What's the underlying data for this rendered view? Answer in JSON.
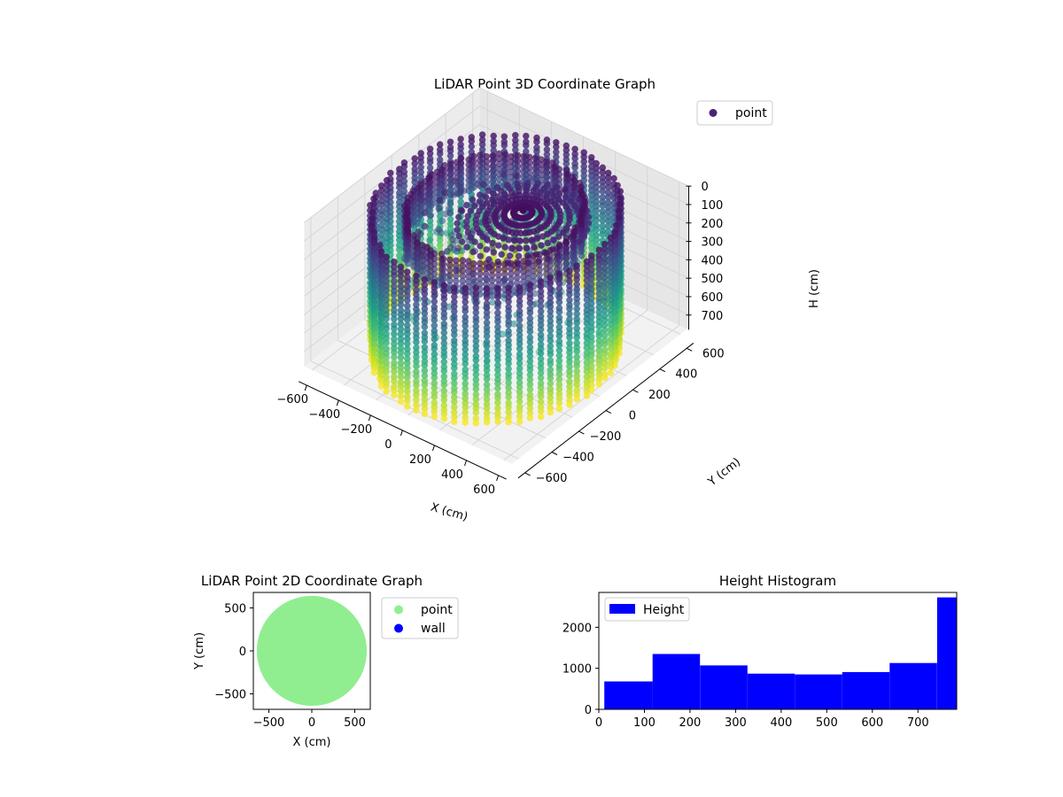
{
  "chart_data": [
    {
      "type": "scatter3d",
      "title": "LiDAR Point 3D Coordinate Graph",
      "xlabel": "X (cm)",
      "ylabel": "Y (cm)",
      "zlabel": "H (cm)",
      "xlim": [
        -650,
        650
      ],
      "ylim": [
        -650,
        650
      ],
      "zlim": [
        780,
        0
      ],
      "x_ticks": [
        -600,
        -400,
        -200,
        0,
        200,
        400,
        600
      ],
      "y_ticks": [
        -600,
        -400,
        -200,
        0,
        200,
        400,
        600
      ],
      "z_ticks": [
        0,
        100,
        200,
        300,
        400,
        500,
        600,
        700
      ],
      "legend": {
        "position": "top-right",
        "entries": [
          "point"
        ]
      },
      "series": [
        {
          "name": "point",
          "color_map": "viridis",
          "legend_color": "#482575",
          "description_values": {
            "wall_radius": 600,
            "wall_height_range": [
              0,
              780
            ],
            "ceiling_radius": 430,
            "ceiling_height": 0,
            "scan_lines": 72
          }
        }
      ],
      "grid": true
    },
    {
      "type": "scatter",
      "title": "LiDAR Point 2D Coordinate Graph",
      "xlabel": "X (cm)",
      "ylabel": "Y (cm)",
      "xlim": [
        -680,
        680
      ],
      "ylim": [
        -680,
        680
      ],
      "x_ticks": [
        -500,
        0,
        500
      ],
      "y_ticks": [
        -500,
        0,
        500
      ],
      "legend": {
        "position": "outside-right",
        "entries": [
          "point",
          "wall"
        ]
      },
      "series": [
        {
          "name": "point",
          "color": "#90ee90",
          "shape": "filled-circle",
          "radius": 640
        },
        {
          "name": "wall",
          "color": "#0000ff"
        }
      ]
    },
    {
      "type": "bar",
      "title": "Height Histogram",
      "xlabel": "",
      "ylabel": "",
      "xlim": [
        0,
        785
      ],
      "ylim": [
        0,
        2850
      ],
      "x_ticks": [
        0,
        100,
        200,
        300,
        400,
        500,
        600,
        700
      ],
      "y_ticks": [
        0,
        1000,
        2000
      ],
      "color": "#0000ff",
      "legend": {
        "position": "top-left",
        "entries": [
          "Height"
        ]
      },
      "series": [
        {
          "name": "Height",
          "bin_edges": [
            12,
            118,
            222,
            326,
            430,
            534,
            638,
            742,
            785
          ],
          "values": [
            680,
            1350,
            1070,
            870,
            850,
            910,
            1130,
            2730
          ]
        }
      ]
    }
  ]
}
